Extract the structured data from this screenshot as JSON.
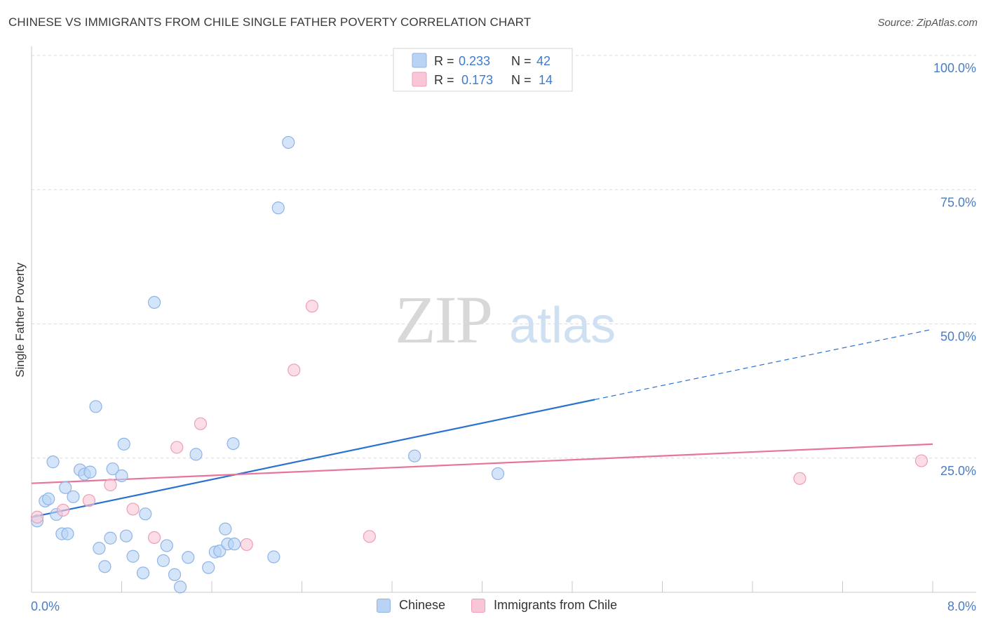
{
  "title": "CHINESE VS IMMIGRANTS FROM CHILE SINGLE FATHER POVERTY CORRELATION CHART",
  "source": "Source: ZipAtlas.com",
  "watermark": {
    "zip": "ZIP",
    "atlas": "atlas"
  },
  "colors": {
    "blue_fill": "#b9d3f5",
    "blue_stroke": "#8fb4e6",
    "blue_line": "#2a72d0",
    "pink_fill": "#f8c6d6",
    "pink_stroke": "#ef9db8",
    "pink_line": "#e8749a",
    "axis_label": "#4a7cc4",
    "grid": "#d9d9d9"
  },
  "legend": {
    "rows": [
      {
        "r_label": "R =",
        "r_value": "0.233",
        "n_label": "N =",
        "n_value": "42",
        "series": "chinese"
      },
      {
        "r_label": "R =",
        "r_value": "0.173",
        "n_label": "N =",
        "n_value": "14",
        "series": "chile"
      }
    ]
  },
  "bottom_legend": [
    {
      "label": "Chinese",
      "series": "chinese"
    },
    {
      "label": "Immigrants from Chile",
      "series": "chile"
    }
  ],
  "chart_data": {
    "type": "scatter",
    "title": "CHINESE VS IMMIGRANTS FROM CHILE SINGLE FATHER POVERTY CORRELATION CHART",
    "xlabel": "",
    "ylabel": "Single Father Poverty",
    "xlim": [
      0,
      8
    ],
    "ylim": [
      0,
      100
    ],
    "x_tick_labels": [
      {
        "value": 0,
        "label": "0.0%"
      },
      {
        "value": 8,
        "label": "8.0%"
      }
    ],
    "y_tick_labels": [
      {
        "value": 25,
        "label": "25.0%"
      },
      {
        "value": 50,
        "label": "50.0%"
      },
      {
        "value": 75,
        "label": "75.0%"
      },
      {
        "value": 100,
        "label": "100.0%"
      }
    ],
    "grid": true,
    "legend_position": "top-center",
    "series": [
      {
        "name": "Chinese",
        "key": "chinese",
        "points": [
          [
            0.05,
            13.3
          ],
          [
            0.12,
            17.0
          ],
          [
            0.15,
            17.4
          ],
          [
            0.19,
            24.3
          ],
          [
            0.22,
            14.5
          ],
          [
            0.27,
            10.9
          ],
          [
            0.3,
            19.5
          ],
          [
            0.32,
            10.9
          ],
          [
            0.37,
            17.8
          ],
          [
            0.43,
            22.8
          ],
          [
            0.47,
            22.0
          ],
          [
            0.52,
            22.4
          ],
          [
            0.57,
            34.6
          ],
          [
            0.6,
            8.2
          ],
          [
            0.65,
            4.8
          ],
          [
            0.7,
            10.1
          ],
          [
            0.72,
            23.0
          ],
          [
            0.8,
            21.7
          ],
          [
            0.82,
            27.6
          ],
          [
            0.84,
            10.5
          ],
          [
            0.9,
            6.7
          ],
          [
            0.99,
            3.6
          ],
          [
            1.01,
            14.6
          ],
          [
            1.09,
            54.0
          ],
          [
            1.17,
            5.9
          ],
          [
            1.2,
            8.7
          ],
          [
            1.27,
            3.3
          ],
          [
            1.32,
            1.0
          ],
          [
            1.39,
            6.5
          ],
          [
            1.46,
            25.7
          ],
          [
            1.57,
            4.6
          ],
          [
            1.63,
            7.5
          ],
          [
            1.67,
            7.7
          ],
          [
            1.72,
            11.8
          ],
          [
            1.79,
            27.7
          ],
          [
            1.74,
            9.0
          ],
          [
            2.15,
            6.6
          ],
          [
            2.19,
            71.6
          ],
          [
            2.28,
            83.8
          ],
          [
            3.4,
            25.4
          ],
          [
            4.14,
            22.1
          ],
          [
            1.8,
            9.0
          ]
        ]
      },
      {
        "name": "Immigrants from Chile",
        "key": "chile",
        "points": [
          [
            0.05,
            14.0
          ],
          [
            0.28,
            15.3
          ],
          [
            0.51,
            17.1
          ],
          [
            0.7,
            20.0
          ],
          [
            0.9,
            15.5
          ],
          [
            1.09,
            10.2
          ],
          [
            1.29,
            27.0
          ],
          [
            1.5,
            31.4
          ],
          [
            1.91,
            8.9
          ],
          [
            2.33,
            41.4
          ],
          [
            2.49,
            53.3
          ],
          [
            3.0,
            10.4
          ],
          [
            6.82,
            21.2
          ],
          [
            7.9,
            24.5
          ]
        ]
      }
    ],
    "trend_lines": [
      {
        "series": "chinese",
        "x_start": 0,
        "y_start": 14.0,
        "x_solid_end": 5.0,
        "y_solid_end": 35.9,
        "x_end": 8.0,
        "y_end": 49.0
      },
      {
        "series": "chile",
        "x_start": 0,
        "y_start": 20.3,
        "x_end": 8.0,
        "y_end": 27.6
      }
    ]
  }
}
